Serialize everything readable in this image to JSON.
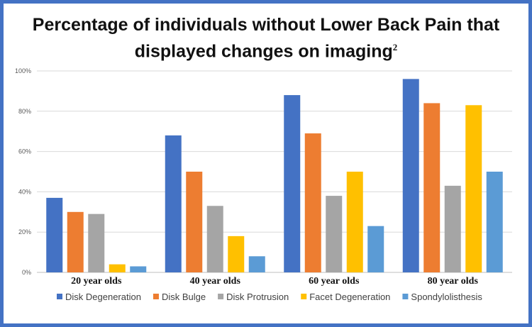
{
  "chart_data": {
    "type": "bar",
    "title": "Percentage of individuals without Lower Back Pain that",
    "title_line2": "displayed changes on imaging",
    "title_superscript": "2",
    "categories": [
      "20 year olds",
      "40 year olds",
      "60 year olds",
      "80 year olds"
    ],
    "series": [
      {
        "name": "Disk Degeneration",
        "color": "#4472c4",
        "values": [
          37,
          68,
          88,
          96
        ]
      },
      {
        "name": "Disk Bulge",
        "color": "#ed7d31",
        "values": [
          30,
          50,
          69,
          84
        ]
      },
      {
        "name": "Disk Protrusion",
        "color": "#a5a5a5",
        "values": [
          29,
          33,
          38,
          43
        ]
      },
      {
        "name": "Facet Degeneration",
        "color": "#ffc000",
        "values": [
          4,
          18,
          50,
          83
        ]
      },
      {
        "name": "Spondylolisthesis",
        "color": "#5b9bd5",
        "values": [
          3,
          8,
          23,
          50
        ]
      }
    ],
    "ylim": [
      0,
      100
    ],
    "yticks": [
      "0%",
      "20%",
      "40%",
      "60%",
      "80%",
      "100%"
    ],
    "grid": true,
    "legend_position": "bottom"
  }
}
